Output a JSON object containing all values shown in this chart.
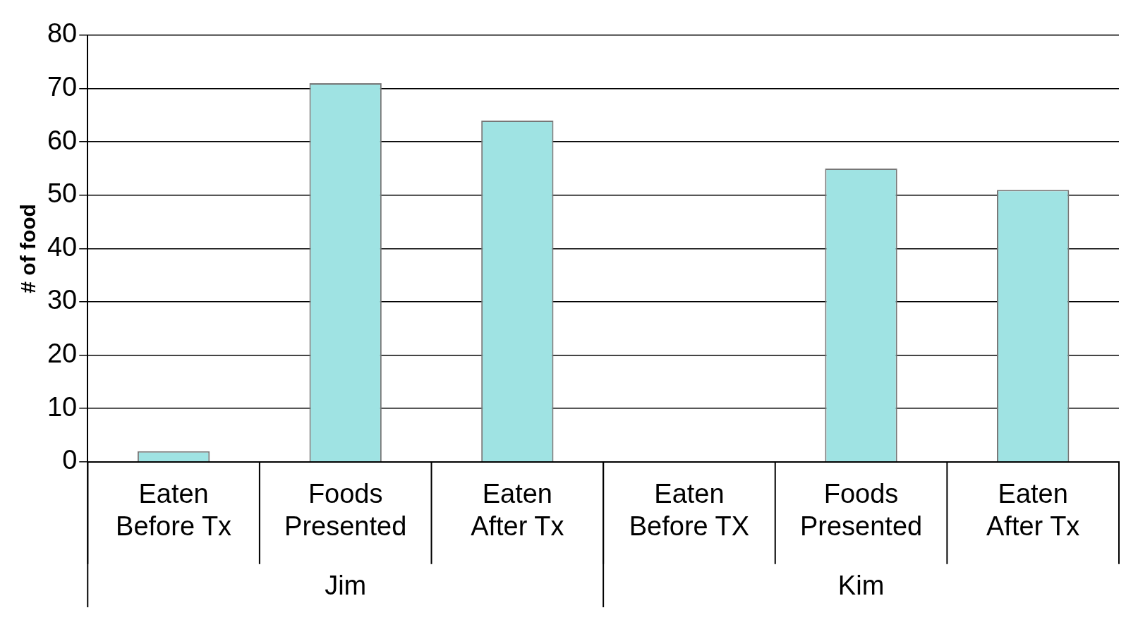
{
  "chart_data": {
    "type": "bar",
    "ylabel": "# of food",
    "categories": [
      "Eaten Before Tx",
      "Foods Presented",
      "Eaten After Tx",
      "Eaten Before TX",
      "Foods Presented",
      "Eaten After Tx"
    ],
    "values": [
      2,
      71,
      64,
      0,
      55,
      51
    ],
    "color": "#9fe3e3",
    "ylim": [
      0,
      80
    ],
    "yticks": [
      0,
      10,
      20,
      30,
      40,
      50,
      60,
      70,
      80
    ],
    "grid": "y",
    "annotations": [
      "Jim",
      "Kim"
    ]
  }
}
